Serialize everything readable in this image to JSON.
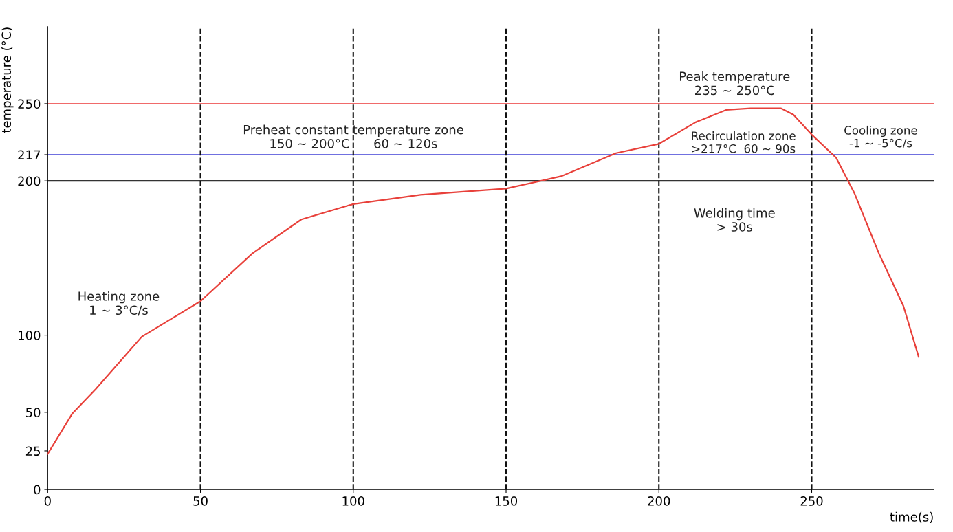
{
  "chart_data": {
    "type": "line",
    "xlabel": "time(s)",
    "ylabel": "temperature (°C)",
    "series": [
      {
        "color": "#e8403a",
        "x": [
          0,
          8,
          15.7,
          30.8,
          50,
          67,
          83,
          100,
          122,
          150,
          168,
          186,
          200,
          212,
          222,
          230,
          240,
          244,
          250,
          258,
          264,
          272,
          280,
          285
        ],
        "values": [
          23,
          49,
          65,
          99,
          122,
          153,
          175,
          185,
          191,
          195,
          203,
          218,
          224,
          238,
          246,
          247,
          247,
          243,
          230,
          215,
          192,
          153,
          119,
          86
        ]
      }
    ],
    "xlim": [
      0,
      290
    ],
    "ylim": [
      0,
      300
    ],
    "xticks": [
      0,
      50,
      100,
      150,
      200,
      250
    ],
    "yticks": [
      0,
      25,
      50,
      100,
      200,
      217,
      250
    ],
    "ref_lines": [
      {
        "axis": "y",
        "value": 250,
        "color": "#f06a6a",
        "line_style": "solid"
      },
      {
        "axis": "y",
        "value": 217,
        "color": "#7070e0",
        "line_style": "solid"
      },
      {
        "axis": "y",
        "value": 200,
        "color": "#333333",
        "line_style": "solid"
      },
      {
        "axis": "x",
        "value": 50,
        "color": "#111111",
        "line_style": "dashed"
      },
      {
        "axis": "x",
        "value": 100,
        "color": "#111111",
        "line_style": "dashed"
      },
      {
        "axis": "x",
        "value": 150,
        "color": "#111111",
        "line_style": "dashed"
      },
      {
        "axis": "x",
        "value": 200,
        "color": "#111111",
        "line_style": "dashed"
      },
      {
        "axis": "x",
        "value": 250,
        "color": "#111111",
        "line_style": "dashed"
      }
    ],
    "annotations": [
      "Heating zone\n1 ~ 3°C/s",
      "Preheat constant temperature zone\n150 ~ 200°C      60 ~ 120s",
      "Peak temperature\n235 ~ 250°C",
      "Recirculation zone\n>217°C  60 ~ 90s",
      "Cooling zone\n-1 ~ -5°C/s",
      "Welding time\n> 30s"
    ],
    "grid": false,
    "legend": false,
    "marker": "none",
    "line_style": "solid"
  }
}
